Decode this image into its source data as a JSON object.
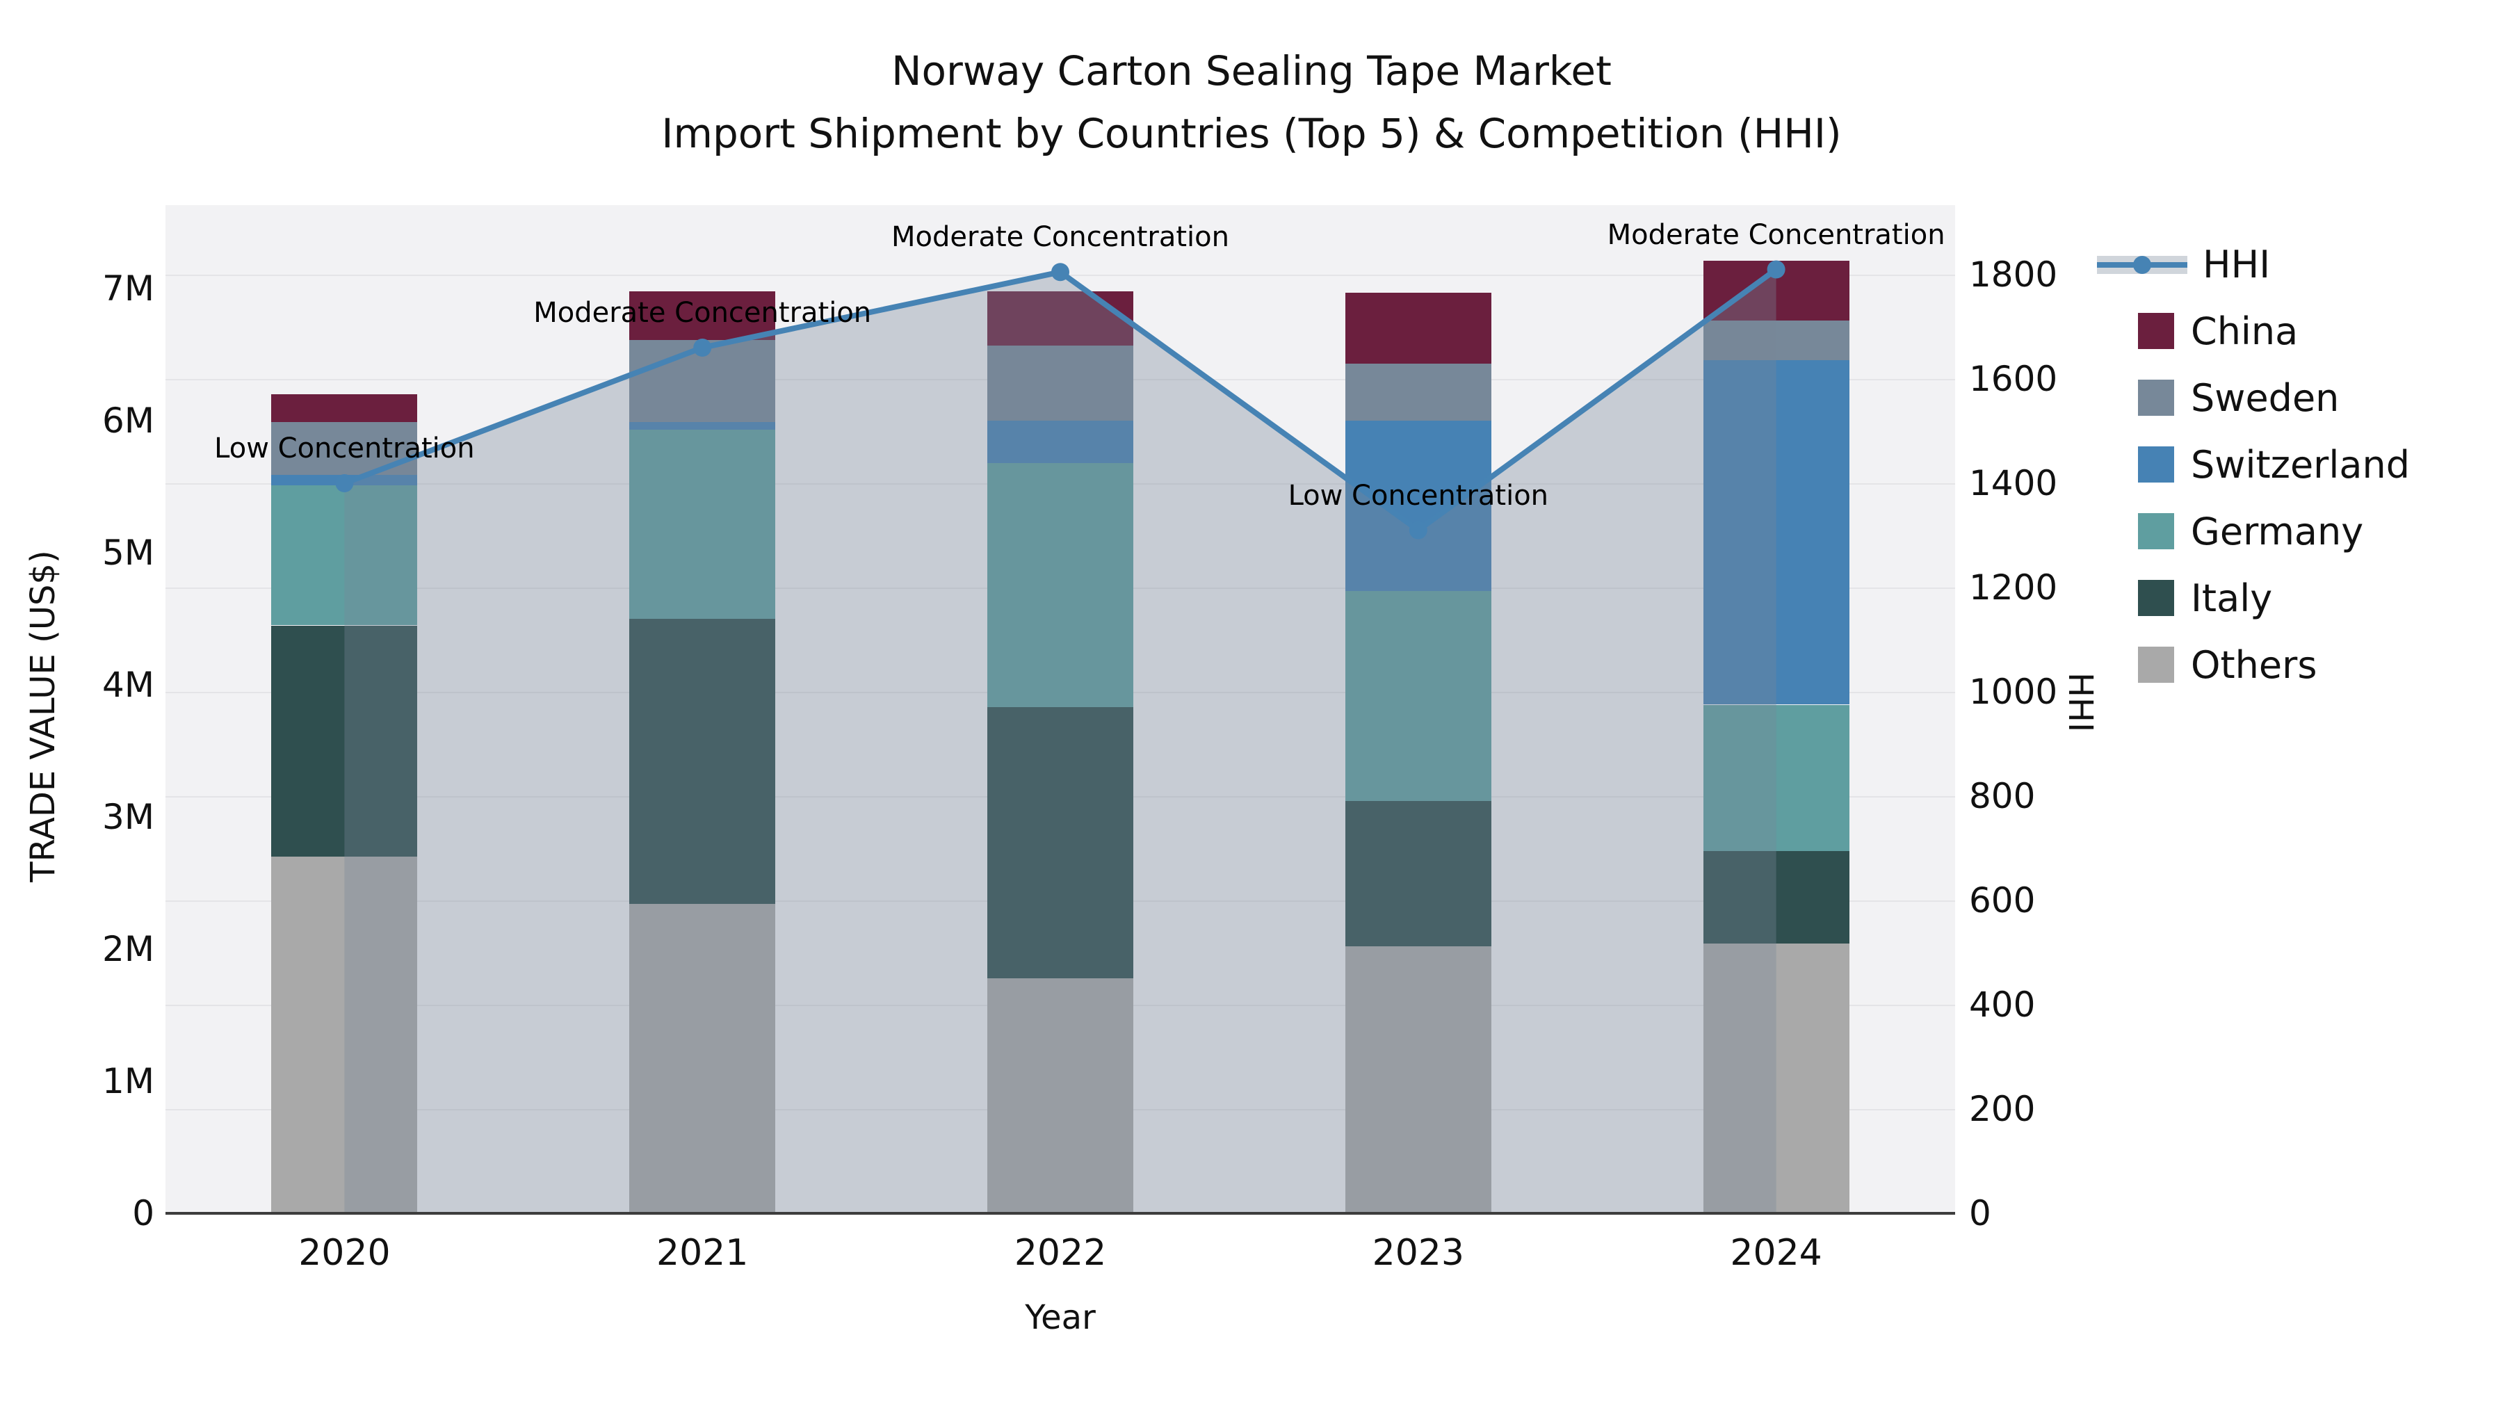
{
  "title": {
    "line1": "Norway Carton Sealing Tape Market",
    "line2": "Import Shipment by Countries (Top 5) & Competition (HHI)"
  },
  "chart_data": {
    "type": "stacked-bar+line",
    "categories": [
      "2020",
      "2021",
      "2022",
      "2023",
      "2024"
    ],
    "values_unit": "M US$ (trade value, left axis)",
    "series": [
      {
        "name": "Others",
        "color": "#A9A9A9",
        "values": [
          2.7,
          2.34,
          1.78,
          2.02,
          2.04
        ]
      },
      {
        "name": "Italy",
        "color": "#2F4F4F",
        "values": [
          1.75,
          2.16,
          2.05,
          1.1,
          0.7
        ]
      },
      {
        "name": "Germany",
        "color": "#5F9EA0",
        "values": [
          1.06,
          1.43,
          1.85,
          1.59,
          1.11
        ]
      },
      {
        "name": "Switzerland",
        "color": "#4682B4",
        "values": [
          0.08,
          0.06,
          0.32,
          1.29,
          2.61
        ]
      },
      {
        "name": "Sweden",
        "color": "#778899",
        "values": [
          0.4,
          0.62,
          0.57,
          0.43,
          0.3
        ]
      },
      {
        "name": "China",
        "color": "#6B1F3E",
        "values": [
          0.21,
          0.37,
          0.41,
          0.54,
          0.45
        ]
      }
    ],
    "bar_totals_M": [
      6.2,
      6.98,
      6.98,
      6.97,
      7.21
    ],
    "line_series": {
      "name": "HHI",
      "color": "#4683B4",
      "area_fill": "rgba(119,136,153,0.35)",
      "values": [
        1400,
        1660,
        1805,
        1310,
        1810
      ]
    },
    "annotations": [
      {
        "category": "2020",
        "text": "Low Concentration"
      },
      {
        "category": "2021",
        "text": "Moderate Concentration"
      },
      {
        "category": "2022",
        "text": "Moderate Concentration"
      },
      {
        "category": "2023",
        "text": "Low Concentration"
      },
      {
        "category": "2024",
        "text": "Moderate Concentration"
      }
    ],
    "xlabel": "Year",
    "ylabel_left": "TRADE VALUE (US$)",
    "ylabel_right": "HHI",
    "yticks_left": [
      "0",
      "1M",
      "2M",
      "3M",
      "4M",
      "5M",
      "6M",
      "7M"
    ],
    "yticks_right": [
      "0",
      "200",
      "400",
      "600",
      "800",
      "1000",
      "1200",
      "1400",
      "1600",
      "1800"
    ],
    "ylim_left": [
      0,
      7630000
    ],
    "ylim_right": [
      0,
      1933
    ],
    "grid": "horizontal",
    "legend_position": "right"
  },
  "legend": {
    "items": [
      {
        "label": "HHI",
        "type": "line",
        "color": "#4683B4"
      },
      {
        "label": "China",
        "type": "swatch",
        "color": "#6B1F3E"
      },
      {
        "label": "Sweden",
        "type": "swatch",
        "color": "#778899"
      },
      {
        "label": "Switzerland",
        "type": "swatch",
        "color": "#4682B4"
      },
      {
        "label": "Germany",
        "type": "swatch",
        "color": "#5F9EA0"
      },
      {
        "label": "Italy",
        "type": "swatch",
        "color": "#2F4F4F"
      },
      {
        "label": "Others",
        "type": "swatch",
        "color": "#A9A9A9"
      }
    ]
  }
}
